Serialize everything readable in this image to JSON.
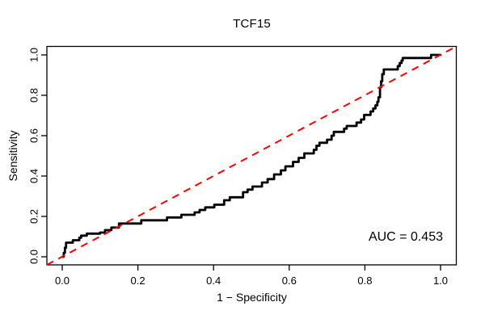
{
  "chart_data": {
    "type": "line",
    "subtype": "roc-step-curve",
    "title": "TCF15",
    "xlabel": "1 − Specificity",
    "ylabel": "Sensitivity",
    "xlim": [
      0,
      1
    ],
    "ylim": [
      0,
      1
    ],
    "grid": false,
    "legend_position": "none",
    "axes": {
      "x": {
        "tick_values": [
          0.0,
          0.2,
          0.4,
          0.6,
          0.8,
          1.0
        ],
        "tick_labels": [
          "0.0",
          "0.2",
          "0.4",
          "0.6",
          "0.8",
          "1.0"
        ]
      },
      "y": {
        "tick_values": [
          0.0,
          0.2,
          0.4,
          0.6,
          0.8,
          1.0
        ],
        "tick_labels": [
          "0.0",
          "0.2",
          "0.4",
          "0.6",
          "0.8",
          "1.0"
        ]
      }
    },
    "annotation": {
      "text": "AUC = 0.453",
      "auc_value": 0.453,
      "position": "bottom-right"
    },
    "series": [
      {
        "name": "roc-curve",
        "draw": "step",
        "color": "#000000",
        "line_width": 2.8,
        "points": [
          [
            0.0,
            0.0
          ],
          [
            0.004,
            0.02
          ],
          [
            0.007,
            0.045
          ],
          [
            0.01,
            0.07
          ],
          [
            0.028,
            0.082
          ],
          [
            0.045,
            0.095
          ],
          [
            0.05,
            0.105
          ],
          [
            0.065,
            0.115
          ],
          [
            0.1,
            0.12
          ],
          [
            0.113,
            0.132
          ],
          [
            0.13,
            0.145
          ],
          [
            0.15,
            0.165
          ],
          [
            0.209,
            0.181
          ],
          [
            0.277,
            0.195
          ],
          [
            0.315,
            0.208
          ],
          [
            0.35,
            0.22
          ],
          [
            0.363,
            0.232
          ],
          [
            0.378,
            0.245
          ],
          [
            0.402,
            0.258
          ],
          [
            0.428,
            0.28
          ],
          [
            0.443,
            0.295
          ],
          [
            0.478,
            0.32
          ],
          [
            0.49,
            0.333
          ],
          [
            0.503,
            0.348
          ],
          [
            0.528,
            0.368
          ],
          [
            0.543,
            0.385
          ],
          [
            0.56,
            0.408
          ],
          [
            0.578,
            0.428
          ],
          [
            0.59,
            0.448
          ],
          [
            0.61,
            0.47
          ],
          [
            0.625,
            0.49
          ],
          [
            0.64,
            0.512
          ],
          [
            0.665,
            0.53
          ],
          [
            0.672,
            0.55
          ],
          [
            0.68,
            0.565
          ],
          [
            0.7,
            0.58
          ],
          [
            0.712,
            0.6
          ],
          [
            0.718,
            0.619
          ],
          [
            0.745,
            0.635
          ],
          [
            0.752,
            0.648
          ],
          [
            0.778,
            0.665
          ],
          [
            0.79,
            0.68
          ],
          [
            0.798,
            0.703
          ],
          [
            0.815,
            0.72
          ],
          [
            0.822,
            0.735
          ],
          [
            0.828,
            0.75
          ],
          [
            0.833,
            0.768
          ],
          [
            0.836,
            0.79
          ],
          [
            0.84,
            0.84
          ],
          [
            0.843,
            0.87
          ],
          [
            0.846,
            0.905
          ],
          [
            0.85,
            0.928
          ],
          [
            0.887,
            0.945
          ],
          [
            0.892,
            0.96
          ],
          [
            0.897,
            0.972
          ],
          [
            0.9,
            0.985
          ],
          [
            0.975,
            1.0
          ],
          [
            1.0,
            1.0
          ]
        ]
      },
      {
        "name": "chance-diagonal",
        "draw": "dashed-line",
        "color": "#ff0000",
        "line_width": 2,
        "dash": "9,7",
        "from": [
          0,
          0
        ],
        "to": [
          1,
          1
        ]
      }
    ]
  }
}
